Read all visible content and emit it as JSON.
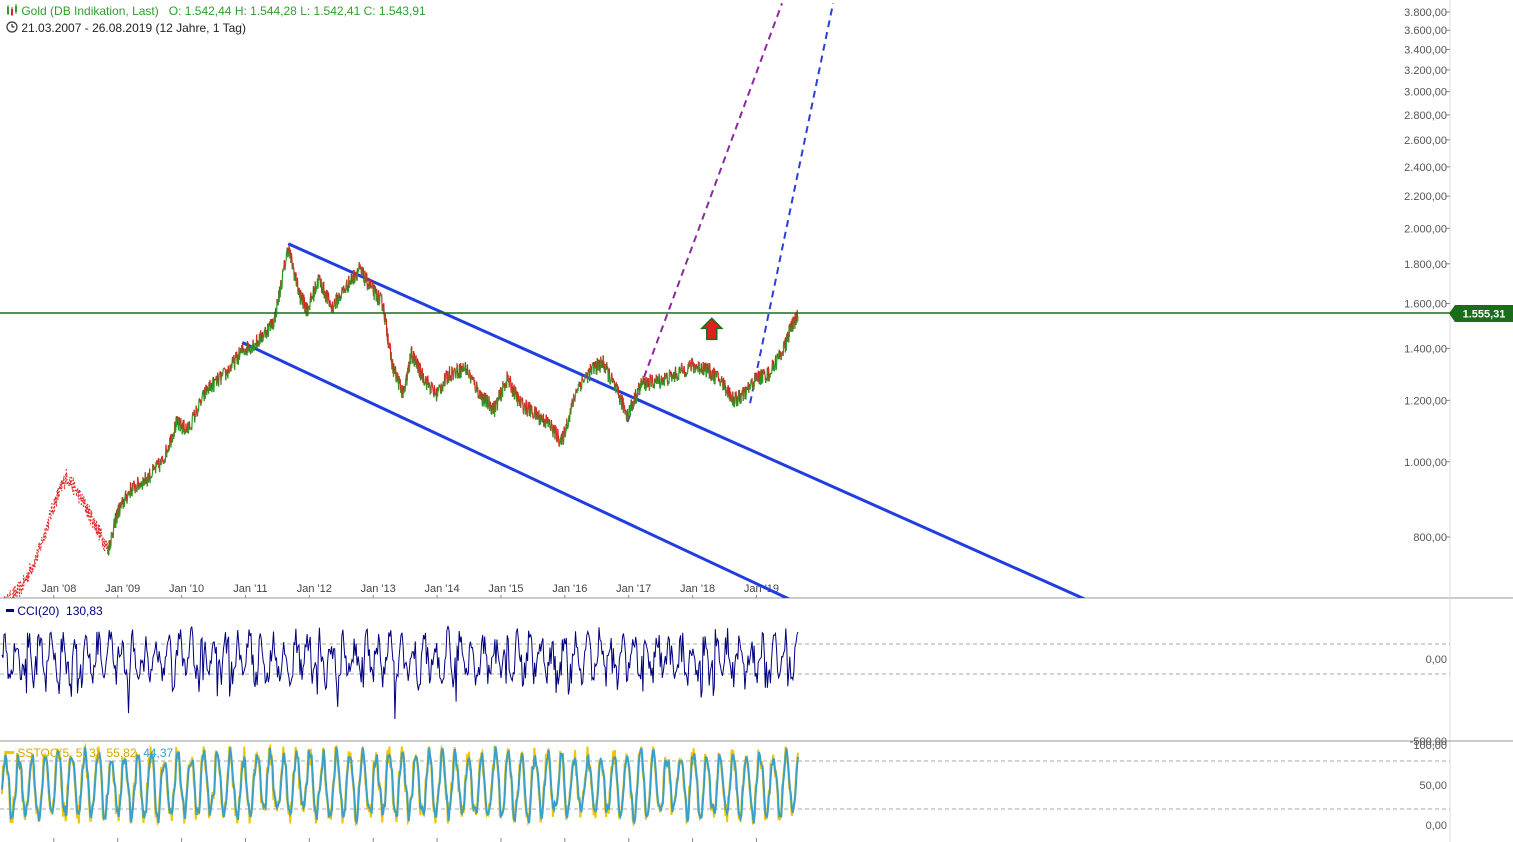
{
  "header": {
    "instrument": "Gold (DB Indikation, Last)",
    "ohlc": "O: 1.542,44  H: 1.544,28  L: 1.542,41  C: 1.543,91",
    "range": "21.03.2007 - 26.08.2019  (12 Jahre, 1 Tag)",
    "instrument_icon": "candlestick-icon",
    "clock_icon": "clock-icon"
  },
  "colors": {
    "channel": "#1f3de0",
    "support": "#1a6b1a",
    "dashed_purple": "#8b2a9e",
    "dashed_blue": "#2a3fd8",
    "candle_up": "#23a023",
    "candle_down": "#dd2222",
    "cci": "#000080",
    "stoch_k": "#f2c400",
    "stoch_d": "#3aa0c8",
    "tag_bg": "#1a6b1a"
  },
  "chart_data": [
    {
      "type": "line",
      "title": "Gold (DB Indikation, Last)",
      "scale": "log",
      "y_ticks": [
        "3.800,00",
        "3.600,00",
        "3.400,00",
        "3.200,00",
        "3.000,00",
        "2.800,00",
        "2.600,00",
        "2.400,00",
        "2.200,00",
        "2.000,00",
        "1.800,00",
        "1.600,00",
        "1.400,00",
        "1.200,00",
        "1.000,00",
        "800,00"
      ],
      "y_tick_values": [
        3800,
        3600,
        3400,
        3200,
        3000,
        2800,
        2600,
        2400,
        2200,
        2000,
        1800,
        1600,
        1400,
        1200,
        1000,
        800
      ],
      "ylim": [
        640,
        3900
      ],
      "x_ticks": [
        "Jan '08",
        "Jan '09",
        "Jan '10",
        "Jan '11",
        "Jan '12",
        "Jan '13",
        "Jan '14",
        "Jan '15",
        "Jan '16",
        "Jan '17",
        "Jan '18",
        "Jan '19"
      ],
      "x_tick_years": [
        2008,
        2009,
        2010,
        2011,
        2012,
        2013,
        2014,
        2015,
        2016,
        2017,
        2018,
        2019
      ],
      "xlim": [
        2007.22,
        2030.0
      ],
      "series": [
        {
          "x": [
            2007.22,
            2007.5,
            2007.75,
            2008.0,
            2008.2,
            2008.45,
            2008.65,
            2008.85,
            2009.0,
            2009.2,
            2009.45,
            2009.7,
            2009.92,
            2010.1,
            2010.4,
            2010.7,
            2010.95,
            2011.2,
            2011.45,
            2011.67,
            2011.85,
            2011.97,
            2012.15,
            2012.35,
            2012.6,
            2012.78,
            2012.98,
            2013.15,
            2013.3,
            2013.48,
            2013.6,
            2013.75,
            2013.98,
            2014.2,
            2014.45,
            2014.7,
            2014.9,
            2015.1,
            2015.3,
            2015.55,
            2015.75,
            2015.95,
            2016.2,
            2016.45,
            2016.6,
            2016.8,
            2016.98,
            2017.2,
            2017.45,
            2017.7,
            2017.97,
            2018.2,
            2018.45,
            2018.65,
            2018.8,
            2019.0,
            2019.2,
            2019.45,
            2019.55,
            2019.65
          ],
          "y": [
            655,
            690,
            760,
            880,
            960,
            890,
            830,
            770,
            860,
            920,
            950,
            1000,
            1120,
            1100,
            1240,
            1300,
            1390,
            1430,
            1520,
            1890,
            1640,
            1570,
            1720,
            1580,
            1690,
            1770,
            1670,
            1600,
            1330,
            1220,
            1380,
            1300,
            1220,
            1300,
            1320,
            1210,
            1170,
            1280,
            1190,
            1150,
            1120,
            1060,
            1250,
            1320,
            1340,
            1240,
            1150,
            1260,
            1270,
            1290,
            1330,
            1320,
            1270,
            1200,
            1220,
            1280,
            1300,
            1410,
            1500,
            1540
          ]
        }
      ],
      "support_level": 1555.31,
      "support_label": "1.555,31",
      "trendlines": [
        {
          "style": "solid",
          "from": [
            2011.67,
            1910
          ],
          "to": [
            2024.6,
            640
          ]
        },
        {
          "style": "solid",
          "from": [
            2010.95,
            1425
          ],
          "to": [
            2019.95,
            640
          ]
        },
        {
          "style": "dashed",
          "from": [
            2016.98,
            1125
          ],
          "to": [
            2019.4,
            3900
          ]
        },
        {
          "style": "dashed",
          "from": [
            2018.9,
            1190
          ],
          "to": [
            2020.2,
            3900
          ]
        }
      ],
      "arrow": {
        "x": 2018.3,
        "y": 1540,
        "direction": "up"
      }
    },
    {
      "type": "line",
      "label": "CCI(20)",
      "value": "130,83",
      "y_ticks": [
        "0,00",
        "-500,00"
      ],
      "y_tick_values": [
        0,
        -500
      ],
      "ylim": [
        -500,
        400
      ],
      "reference_lines": [
        100,
        -100
      ]
    },
    {
      "type": "line",
      "label": "SSTOC(5, 5, 3)",
      "values": [
        "55,82",
        "44,37"
      ],
      "y_ticks": [
        "100,00",
        "50,00",
        "0,00"
      ],
      "y_tick_values": [
        100,
        50,
        0
      ],
      "ylim": [
        0,
        105
      ],
      "reference_lines": [
        80,
        20
      ]
    }
  ]
}
